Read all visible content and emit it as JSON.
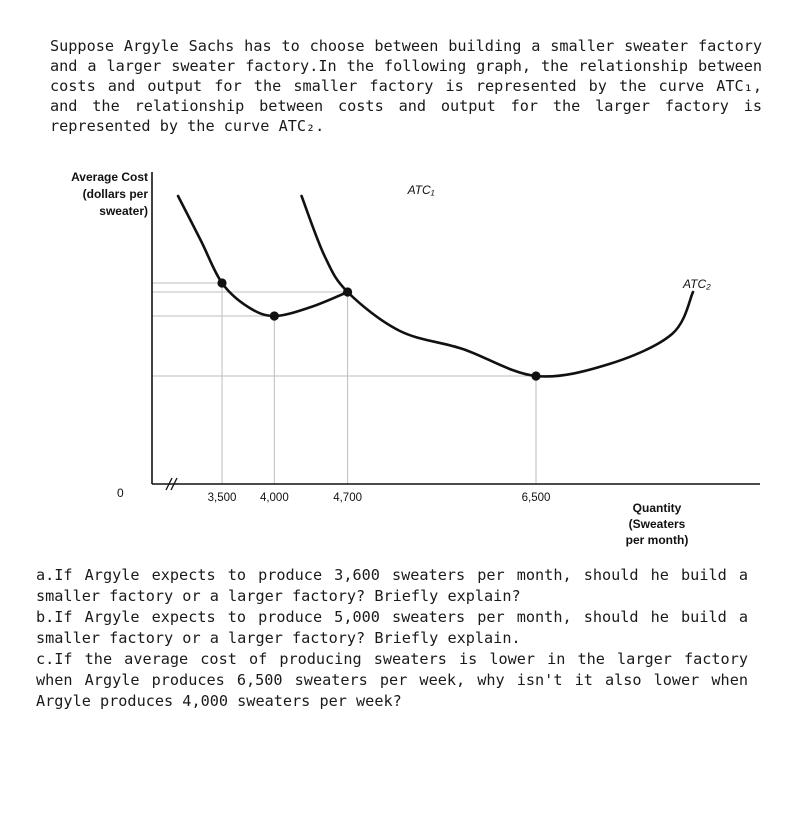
{
  "intro_text": "Suppose Argyle Sachs has to choose between building a smaller sweater factory and a larger sweater factory.In the following graph, the relationship between costs and output for the smaller factory is represented by the curve ATC₁, and the relationship between costs and output for the larger factory is represented by the curve ATC₂.",
  "questions": [
    "a.If Argyle expects to produce 3,600 sweaters per month, should he build a smaller factory or a larger factory? Briefly explain?",
    "b.If Argyle expects to produce 5,000 sweaters per month, should he build a smaller factory or a larger factory? Briefly explain.",
    "c.If the average cost of producing sweaters is lower in the larger factory when Argyle produces 6,500 sweaters per week, why isn't it also lower when Argyle produces 4,000 sweaters per week?"
  ],
  "chart_data": {
    "type": "line",
    "title": "",
    "ylabel": [
      "Average Cost",
      "(dollars per",
      "sweater)"
    ],
    "xlabel": [
      "Quantity",
      "(Sweaters",
      "per month)"
    ],
    "origin_label": "0",
    "x_ticks": [
      {
        "value": 3500,
        "label": "3,500"
      },
      {
        "value": 4000,
        "label": "4,000"
      },
      {
        "value": 4700,
        "label": "4,700"
      },
      {
        "value": 6500,
        "label": "6,500"
      }
    ],
    "xlim": [
      3200,
      8000
    ],
    "ylim": [
      0,
      10
    ],
    "axis_break": true,
    "grid": "reference lines to marked points",
    "series": [
      {
        "name": "ATC₁",
        "color": "#111111",
        "points": [
          [
            3080,
            9.6
          ],
          [
            3300,
            8.1
          ],
          [
            3500,
            6.7
          ],
          [
            3750,
            5.9
          ],
          [
            4000,
            5.6
          ],
          [
            4350,
            5.9
          ],
          [
            4700,
            6.4
          ]
        ],
        "marked_points": [
          [
            3500,
            6.7
          ],
          [
            4000,
            5.6
          ],
          [
            4700,
            6.4
          ]
        ]
      },
      {
        "name": "ATC₂",
        "color": "#111111",
        "points": [
          [
            4260,
            9.6
          ],
          [
            4480,
            7.6
          ],
          [
            4700,
            6.4
          ],
          [
            5200,
            5.1
          ],
          [
            5800,
            4.5
          ],
          [
            6500,
            3.6
          ],
          [
            7200,
            4.0
          ],
          [
            7800,
            5.0
          ],
          [
            8000,
            6.4
          ]
        ],
        "marked_points": [
          [
            4700,
            6.4
          ],
          [
            6500,
            3.6
          ]
        ]
      }
    ]
  }
}
